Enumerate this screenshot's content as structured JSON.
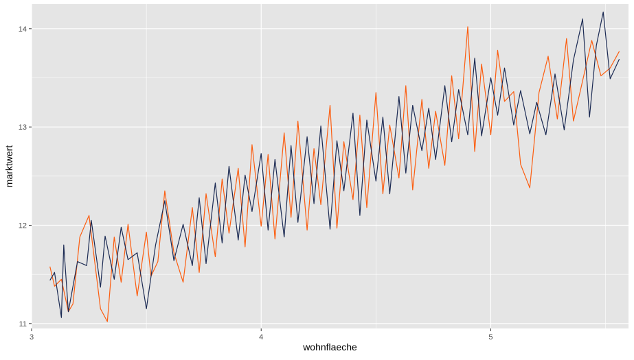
{
  "colors": {
    "panel": "#e5e5e5",
    "grid_major": "#ffffff",
    "series_orange": "#fc5d0f",
    "series_navy": "#1b2a53"
  },
  "chart_data": {
    "type": "line",
    "title": "",
    "xlabel": "wohnflaeche",
    "ylabel": "marktwert",
    "xlim": [
      3.0,
      5.6
    ],
    "ylim": [
      10.95,
      14.25
    ],
    "x_ticks": [
      3,
      4,
      5
    ],
    "x_tick_labels": [
      "3",
      "4",
      "5"
    ],
    "y_ticks": [
      11,
      12,
      13,
      14
    ],
    "y_tick_labels": [
      "11",
      "12",
      "13",
      "14"
    ],
    "grid": true,
    "legend": "none",
    "series": [
      {
        "color": "#fc5d0f",
        "x": [
          3.08,
          3.1,
          3.13,
          3.16,
          3.18,
          3.21,
          3.25,
          3.3,
          3.33,
          3.36,
          3.39,
          3.42,
          3.46,
          3.5,
          3.52,
          3.55,
          3.58,
          3.62,
          3.66,
          3.7,
          3.73,
          3.76,
          3.8,
          3.83,
          3.86,
          3.9,
          3.93,
          3.96,
          4.0,
          4.03,
          4.06,
          4.1,
          4.13,
          4.16,
          4.2,
          4.23,
          4.26,
          4.3,
          4.33,
          4.36,
          4.4,
          4.43,
          4.46,
          4.5,
          4.53,
          4.56,
          4.6,
          4.63,
          4.66,
          4.7,
          4.73,
          4.76,
          4.8,
          4.83,
          4.86,
          4.9,
          4.93,
          4.96,
          5.0,
          5.03,
          5.06,
          5.1,
          5.13,
          5.17,
          5.21,
          5.25,
          5.29,
          5.33,
          5.36,
          5.4,
          5.44,
          5.48,
          5.52,
          5.56
        ],
        "y": [
          11.58,
          11.38,
          11.45,
          11.12,
          11.2,
          11.88,
          12.1,
          11.15,
          11.02,
          11.88,
          11.42,
          12.01,
          11.28,
          11.93,
          11.48,
          11.63,
          12.35,
          11.72,
          11.42,
          12.18,
          11.52,
          12.32,
          11.68,
          12.47,
          11.92,
          12.58,
          11.78,
          12.82,
          11.99,
          12.72,
          11.86,
          12.94,
          12.08,
          13.06,
          11.95,
          12.78,
          12.21,
          13.22,
          11.97,
          12.85,
          12.26,
          13.12,
          12.18,
          13.35,
          12.32,
          13.02,
          12.48,
          13.42,
          12.36,
          13.28,
          12.58,
          13.16,
          12.61,
          13.52,
          12.88,
          14.02,
          12.75,
          13.64,
          12.92,
          13.78,
          13.26,
          13.36,
          12.62,
          12.38,
          13.35,
          13.72,
          13.08,
          13.9,
          13.06,
          13.47,
          13.88,
          13.52,
          13.6,
          13.77
        ]
      },
      {
        "color": "#1b2a53",
        "x": [
          3.08,
          3.1,
          3.13,
          3.14,
          3.16,
          3.2,
          3.24,
          3.26,
          3.3,
          3.32,
          3.36,
          3.39,
          3.42,
          3.46,
          3.5,
          3.54,
          3.58,
          3.62,
          3.66,
          3.7,
          3.73,
          3.76,
          3.8,
          3.83,
          3.86,
          3.9,
          3.93,
          3.96,
          4.0,
          4.03,
          4.06,
          4.1,
          4.13,
          4.16,
          4.2,
          4.23,
          4.26,
          4.3,
          4.33,
          4.36,
          4.4,
          4.43,
          4.46,
          4.5,
          4.53,
          4.56,
          4.6,
          4.63,
          4.66,
          4.7,
          4.73,
          4.76,
          4.8,
          4.83,
          4.86,
          4.9,
          4.93,
          4.96,
          5.0,
          5.03,
          5.06,
          5.1,
          5.13,
          5.17,
          5.2,
          5.24,
          5.28,
          5.32,
          5.36,
          5.4,
          5.43,
          5.46,
          5.49,
          5.52,
          5.56
        ],
        "y": [
          11.44,
          11.52,
          11.06,
          11.8,
          11.12,
          11.63,
          11.59,
          12.05,
          11.37,
          11.89,
          11.45,
          11.98,
          11.65,
          11.72,
          11.15,
          11.8,
          12.25,
          11.64,
          12.01,
          11.59,
          12.28,
          11.61,
          12.43,
          11.82,
          12.6,
          11.85,
          12.51,
          12.14,
          12.73,
          11.95,
          12.67,
          11.88,
          12.81,
          12.03,
          12.9,
          12.22,
          13.01,
          11.96,
          12.86,
          12.35,
          13.14,
          12.1,
          13.07,
          12.45,
          13.1,
          12.32,
          13.31,
          12.53,
          13.22,
          12.76,
          13.19,
          12.67,
          13.42,
          12.85,
          13.38,
          12.92,
          13.7,
          12.91,
          13.5,
          13.12,
          13.6,
          13.02,
          13.37,
          12.93,
          13.25,
          12.92,
          13.54,
          12.97,
          13.68,
          14.1,
          13.1,
          13.83,
          14.17,
          13.49,
          13.69
        ]
      }
    ]
  }
}
